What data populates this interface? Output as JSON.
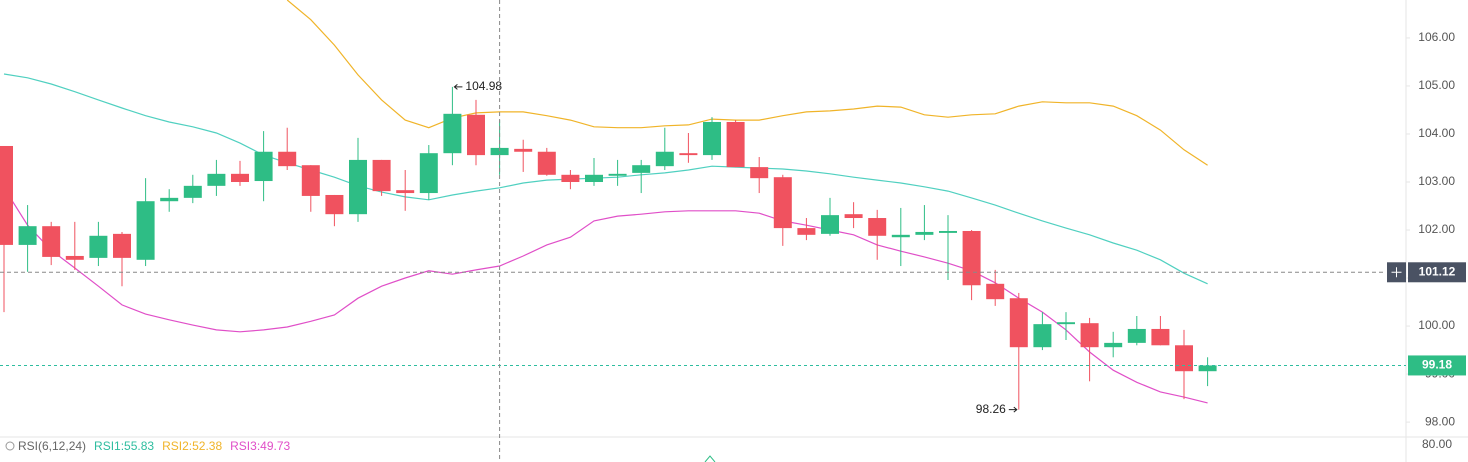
{
  "chart_data": {
    "type": "candlestick",
    "open": [
      103.75,
      101.69,
      102.08,
      101.46,
      101.42,
      101.92,
      101.38,
      102.6,
      102.67,
      102.92,
      103.17,
      103.02,
      103.63,
      103.35,
      102.73,
      102.33,
      103.46,
      102.83,
      102.77,
      103.6,
      104.4,
      103.56,
      103.69,
      103.63,
      103.15,
      103.0,
      103.13,
      103.19,
      103.33,
      103.6,
      103.56,
      104.25,
      103.31,
      103.1,
      102.04,
      101.92,
      102.33,
      102.25,
      101.85,
      101.9,
      101.94,
      101.98,
      100.88,
      100.58,
      99.56,
      100.04,
      100.06,
      99.56,
      99.65,
      99.94,
      99.6,
      99.06
    ],
    "high": [
      103.75,
      102.52,
      102.17,
      102.17,
      102.17,
      101.96,
      103.08,
      102.85,
      103.15,
      103.46,
      103.44,
      104.06,
      104.13,
      103.35,
      102.73,
      103.92,
      103.46,
      103.25,
      103.77,
      104.98,
      104.71,
      104.29,
      103.88,
      103.71,
      103.25,
      103.5,
      103.46,
      103.46,
      104.13,
      104.02,
      104.35,
      104.29,
      103.52,
      103.15,
      102.25,
      102.67,
      102.58,
      102.42,
      102.46,
      102.52,
      102.31,
      102.0,
      101.17,
      100.69,
      100.29,
      100.29,
      100.17,
      99.88,
      100.21,
      100.21,
      99.92,
      99.35
    ],
    "low": [
      100.29,
      101.13,
      101.27,
      101.17,
      101.25,
      100.83,
      101.25,
      102.38,
      102.56,
      102.71,
      102.92,
      102.6,
      103.25,
      102.38,
      102.08,
      102.17,
      102.71,
      102.4,
      102.63,
      103.35,
      103.35,
      103.15,
      103.21,
      103.13,
      102.85,
      102.92,
      102.92,
      102.77,
      103.25,
      103.4,
      103.46,
      103.31,
      102.77,
      101.67,
      101.79,
      101.88,
      102.04,
      101.38,
      101.25,
      101.79,
      100.96,
      100.54,
      100.42,
      98.26,
      99.5,
      99.71,
      98.85,
      99.35,
      99.6,
      99.6,
      98.48,
      98.75
    ],
    "close": [
      101.69,
      102.08,
      101.44,
      101.38,
      101.88,
      101.42,
      102.6,
      102.67,
      102.92,
      103.17,
      103.0,
      103.63,
      103.33,
      102.71,
      102.33,
      103.46,
      102.81,
      102.77,
      103.6,
      104.42,
      103.56,
      103.71,
      103.63,
      103.15,
      103.0,
      103.15,
      103.17,
      103.35,
      103.63,
      103.56,
      104.25,
      103.31,
      103.08,
      102.04,
      101.9,
      102.31,
      102.25,
      101.88,
      101.9,
      101.96,
      101.98,
      100.85,
      100.56,
      99.56,
      100.04,
      100.08,
      99.56,
      99.65,
      99.94,
      99.6,
      99.06,
      99.18
    ],
    "up_color": "#2ebd85",
    "down_color": "#f0525f",
    "bands": [
      {
        "color": "#f0b429",
        "values": [
          null,
          null,
          null,
          null,
          null,
          null,
          null,
          null,
          null,
          null,
          null,
          null,
          106.79,
          106.38,
          105.85,
          105.23,
          104.71,
          104.29,
          104.13,
          104.33,
          104.44,
          104.46,
          104.46,
          104.38,
          104.29,
          104.15,
          104.13,
          104.13,
          104.17,
          104.19,
          104.31,
          104.29,
          104.29,
          104.38,
          104.46,
          104.48,
          104.52,
          104.58,
          104.56,
          104.4,
          104.35,
          104.4,
          104.42,
          104.58,
          104.67,
          104.65,
          104.65,
          104.58,
          104.38,
          104.08,
          103.67,
          103.35
        ]
      },
      {
        "color": "#50d0c0",
        "values": [
          105.25,
          105.17,
          105.04,
          104.88,
          104.71,
          104.54,
          104.38,
          104.25,
          104.15,
          104.02,
          103.81,
          103.56,
          103.4,
          103.25,
          103.1,
          102.92,
          102.79,
          102.69,
          102.63,
          102.73,
          102.81,
          102.88,
          102.98,
          103.04,
          103.06,
          103.08,
          103.1,
          103.15,
          103.19,
          103.25,
          103.33,
          103.31,
          103.29,
          103.27,
          103.23,
          103.17,
          103.1,
          103.04,
          102.98,
          102.9,
          102.81,
          102.67,
          102.52,
          102.35,
          102.19,
          102.04,
          101.9,
          101.73,
          101.58,
          101.38,
          101.1,
          100.88
        ]
      },
      {
        "color": "#e04fc8",
        "values": [
          102.88,
          102.1,
          101.58,
          101.21,
          100.83,
          100.44,
          100.25,
          100.13,
          100.02,
          99.92,
          99.88,
          99.92,
          99.98,
          100.1,
          100.23,
          100.58,
          100.83,
          101.0,
          101.15,
          101.08,
          101.17,
          101.25,
          101.46,
          101.69,
          101.85,
          102.19,
          102.29,
          102.33,
          102.38,
          102.4,
          102.4,
          102.4,
          102.35,
          102.19,
          102.1,
          102.0,
          101.9,
          101.69,
          101.56,
          101.44,
          101.31,
          101.15,
          100.9,
          100.58,
          100.29,
          99.92,
          99.46,
          99.08,
          98.83,
          98.63,
          98.52,
          98.4
        ]
      }
    ],
    "ylim": [
      97.69,
      106.79
    ],
    "yticks": [
      {
        "value": 106,
        "label": "106.00"
      },
      {
        "value": 105,
        "label": "105.00"
      },
      {
        "value": 104,
        "label": "104.00"
      },
      {
        "value": 103,
        "label": "103.00"
      },
      {
        "value": 102,
        "label": "102.00"
      },
      {
        "value": 101,
        "label": "101.00"
      },
      {
        "value": 100,
        "label": "100.00"
      },
      {
        "value": 99,
        "label": "99.00"
      },
      {
        "value": 98,
        "label": "98.00"
      }
    ],
    "grid": false,
    "crosshair_index": 21,
    "crosshair_price": 101.12,
    "high_marker_index": 19,
    "low_marker_index": 43,
    "rsi": {
      "label": "RSI(6,12,24)",
      "items": [
        {
          "text": "RSI1:55.83",
          "color": "#2ebd9f"
        },
        {
          "text": "RSI2:52.38",
          "color": "#f0b429"
        },
        {
          "text": "RSI3:49.73",
          "color": "#e04fc8"
        }
      ],
      "yticks": [
        {
          "value": 80,
          "label": "80.00"
        }
      ]
    }
  }
}
